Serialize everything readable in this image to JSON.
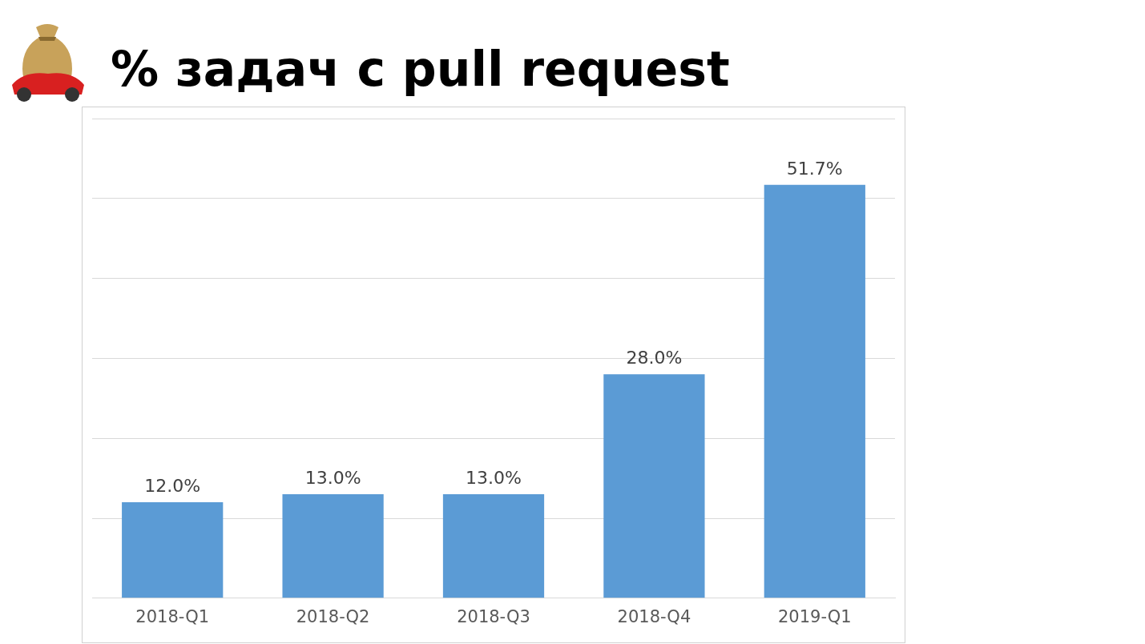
{
  "chart_data": {
    "type": "bar",
    "title": "% задач с pull request",
    "categories": [
      "2018-Q1",
      "2018-Q2",
      "2018-Q3",
      "2018-Q4",
      "2019-Q1"
    ],
    "values": [
      12.0,
      13.0,
      13.0,
      28.0,
      51.7
    ],
    "value_labels": [
      "12.0%",
      "13.0%",
      "13.0%",
      "28.0%",
      "51.7%"
    ],
    "color": "#5b9bd5",
    "ylim": [
      0,
      60
    ],
    "yticks": [
      {
        "value": 0,
        "label": null
      },
      {
        "value": 10,
        "label": null
      },
      {
        "value": 20,
        "label": null
      },
      {
        "value": 30,
        "label": null
      },
      {
        "value": 40,
        "label": null
      },
      {
        "value": 50,
        "label": null
      },
      {
        "value": 60,
        "label": null
      }
    ],
    "grid": "y",
    "tick_labels": "x"
  }
}
